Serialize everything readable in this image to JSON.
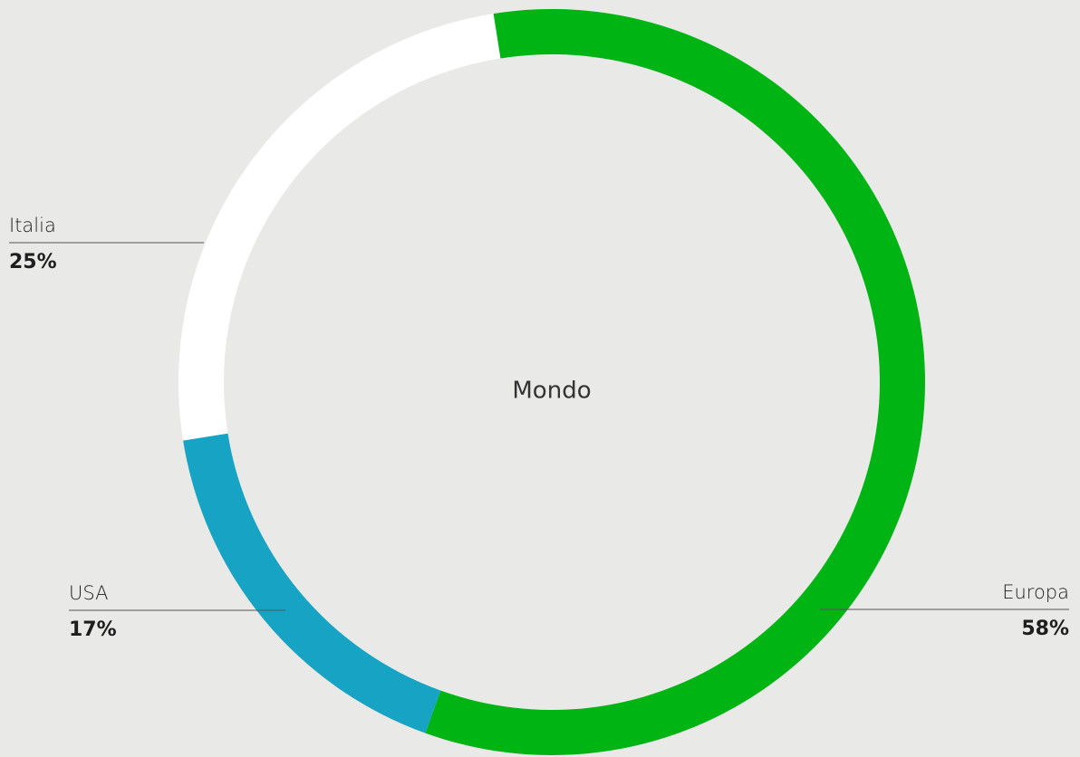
{
  "chart_data": {
    "type": "pie",
    "title": "Mondo",
    "categories": [
      "Europa",
      "USA",
      "Italia"
    ],
    "values": [
      58,
      17,
      25
    ],
    "value_labels": [
      "58%",
      "17%",
      "25%"
    ],
    "colors": [
      "#00b414",
      "#16a3c4",
      "#ffffff"
    ]
  }
}
